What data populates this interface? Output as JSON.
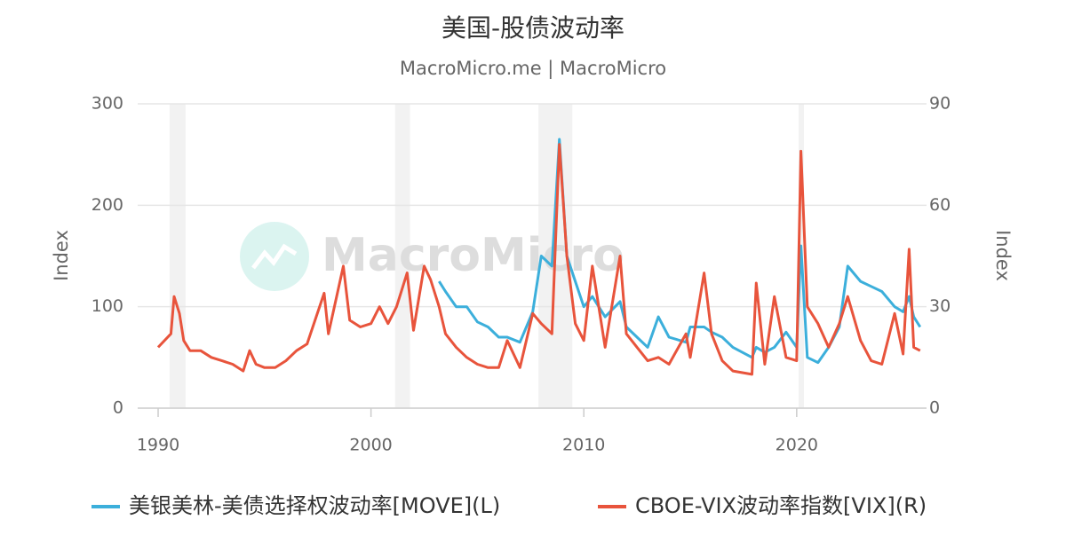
{
  "chart_data": {
    "type": "line",
    "title": "美国-股债波动率",
    "subtitle": "MacroMicro.me | MacroMicro",
    "watermark": "MacroMicro",
    "y_label": "Index",
    "y2_label": "Index",
    "x": [
      1990.0,
      1990.6,
      1990.75,
      1991.0,
      1991.2,
      1991.5,
      1992.0,
      1992.5,
      1993.0,
      1993.5,
      1994.0,
      1994.3,
      1994.6,
      1995.0,
      1995.5,
      1996.0,
      1996.5,
      1997.0,
      1997.8,
      1998.0,
      1998.7,
      1999.0,
      1999.5,
      2000.0,
      2000.4,
      2000.8,
      2001.2,
      2001.7,
      2002.0,
      2002.5,
      2002.8,
      2003.2,
      2003.5,
      2004.0,
      2004.5,
      2005.0,
      2005.5,
      2006.0,
      2006.4,
      2007.0,
      2007.6,
      2008.0,
      2008.5,
      2008.85,
      2009.2,
      2009.6,
      2010.0,
      2010.4,
      2011.0,
      2011.7,
      2012.0,
      2012.5,
      2013.0,
      2013.5,
      2014.0,
      2014.8,
      2015.0,
      2015.65,
      2016.0,
      2016.5,
      2017.0,
      2017.9,
      2018.1,
      2018.5,
      2018.95,
      2019.5,
      2020.0,
      2020.2,
      2020.5,
      2021.0,
      2021.5,
      2022.0,
      2022.4,
      2023.0,
      2023.5,
      2024.0,
      2024.6,
      2025.0,
      2025.28,
      2025.5,
      2025.8
    ],
    "series": [
      {
        "name": "美银美林-美债选择权波动率[MOVE](L)",
        "color": "#3cafdb",
        "axis": "y",
        "values": [
          null,
          null,
          null,
          null,
          null,
          null,
          null,
          null,
          null,
          null,
          null,
          null,
          null,
          null,
          null,
          null,
          null,
          null,
          null,
          null,
          null,
          null,
          null,
          null,
          null,
          null,
          null,
          null,
          null,
          null,
          null,
          125,
          115,
          100,
          100,
          85,
          80,
          70,
          70,
          65,
          95,
          150,
          140,
          265,
          150,
          125,
          100,
          110,
          90,
          105,
          80,
          70,
          60,
          90,
          70,
          65,
          80,
          80,
          75,
          70,
          60,
          50,
          60,
          55,
          60,
          75,
          60,
          160,
          50,
          45,
          60,
          80,
          140,
          125,
          120,
          115,
          100,
          95,
          110,
          90,
          80
        ]
      },
      {
        "name": "CBOE-VIX波动率指数[VIX](R)",
        "color": "#e8543c",
        "axis": "y2",
        "values": [
          18,
          22,
          33,
          28,
          20,
          17,
          17,
          15,
          14,
          13,
          11,
          17,
          13,
          12,
          12,
          14,
          17,
          19,
          34,
          22,
          42,
          26,
          24,
          25,
          30,
          25,
          30,
          40,
          23,
          42,
          38,
          30,
          22,
          18,
          15,
          13,
          12,
          12,
          20,
          12,
          28,
          25,
          22,
          78,
          45,
          25,
          20,
          42,
          18,
          45,
          22,
          18,
          14,
          15,
          13,
          22,
          15,
          40,
          22,
          14,
          11,
          10,
          37,
          13,
          33,
          15,
          14,
          76,
          30,
          25,
          18,
          25,
          33,
          20,
          14,
          13,
          28,
          16,
          47,
          18,
          17
        ]
      }
    ],
    "recessions": [
      [
        1990.54,
        1991.29
      ],
      [
        2001.13,
        2001.83
      ],
      [
        2007.87,
        2009.46
      ],
      [
        2020.09,
        2020.34
      ]
    ],
    "xlim": [
      1989.04,
      2026.1
    ],
    "xticks": [
      1990,
      2000,
      2010,
      2020
    ],
    "ylim": [
      0,
      300
    ],
    "yticks": [
      0,
      100,
      200,
      300
    ],
    "y2lim": [
      0,
      90
    ],
    "y2ticks": [
      0,
      30,
      60,
      90
    ],
    "grid": true
  }
}
